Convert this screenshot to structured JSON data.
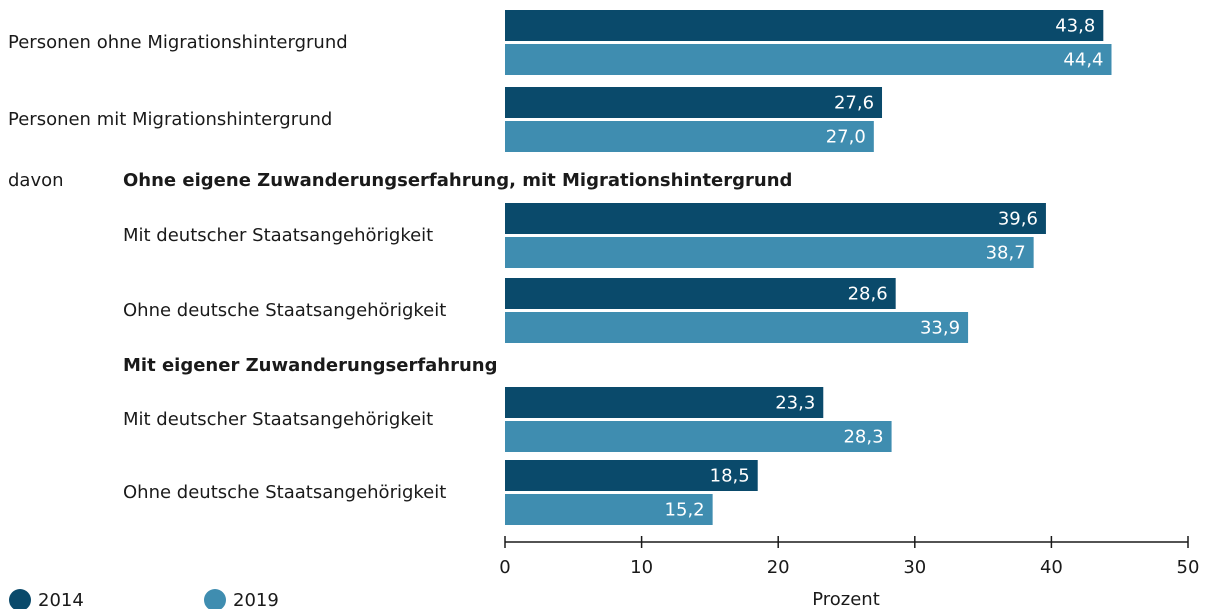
{
  "chart_data": {
    "type": "bar",
    "orientation": "horizontal",
    "categories": [
      "Personen ohne Migrationshintergrund",
      "Personen mit Migrationshintergrund",
      "Mit deutscher Staatsangehörigkeit",
      "Ohne deutsche Staatsangehörigkeit",
      "Mit deutscher Staatsangehörigkeit",
      "Ohne deutsche Staatsangehörigkeit"
    ],
    "prefix": "davon",
    "group_headings": [
      "Ohne eigene Zuwanderungserfahrung, mit Migrationshintergrund",
      "Mit eigener Zuwanderungserfahrung"
    ],
    "series": [
      {
        "name": "2014",
        "color": "#0a4a6b",
        "values": [
          43.8,
          27.6,
          39.6,
          28.6,
          23.3,
          18.5
        ],
        "value_labels": [
          "43,8",
          "27,6",
          "39,6",
          "28,6",
          "23,3",
          "18,5"
        ]
      },
      {
        "name": "2019",
        "color": "#3f8db0",
        "values": [
          44.4,
          27.0,
          38.7,
          33.9,
          28.3,
          15.2
        ],
        "value_labels": [
          "44,4",
          "27,0",
          "38,7",
          "33,9",
          "28,3",
          "15,2"
        ]
      }
    ],
    "xlabel": "Prozent",
    "xlim": [
      0,
      50
    ],
    "xticks": [
      0,
      10,
      20,
      30,
      40,
      50
    ]
  }
}
